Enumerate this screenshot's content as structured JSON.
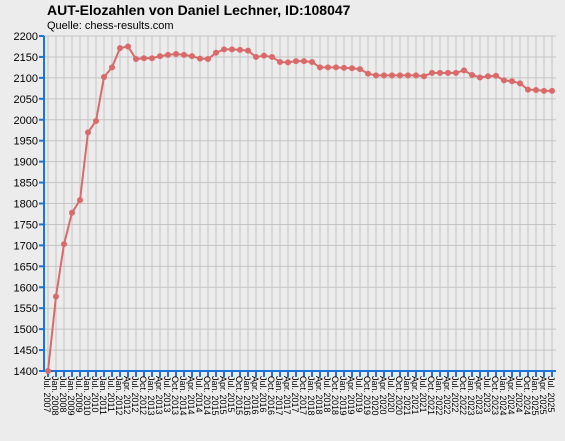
{
  "chart_data": {
    "type": "line",
    "title": "AUT-Elozahlen von Daniel Lechner, ID:108047",
    "subtitle": "Quelle: chess-results.com",
    "xlabel": "",
    "ylabel": "",
    "ylim": [
      1400,
      2200
    ],
    "yticks": [
      1400,
      1450,
      1500,
      1550,
      1600,
      1650,
      1700,
      1750,
      1800,
      1850,
      1900,
      1950,
      2000,
      2050,
      2100,
      2150,
      2200
    ],
    "grid": true,
    "legend": "none",
    "line_color": "#d96a6a",
    "x": [
      "Jul. 2007",
      "Jan. 2008",
      "Jul. 2008",
      "Jan. 2009",
      "Jul. 2009",
      "Jan. 2010",
      "Jul. 2010",
      "Jan. 2011",
      "Jul. 2011",
      "Jan. 2012",
      "Apr. 2012",
      "Jul. 2012",
      "Oct. 2012",
      "Jan. 2013",
      "Apr. 2013",
      "Jul. 2013",
      "Oct. 2013",
      "Jan. 2014",
      "Apr. 2014",
      "Jul. 2014",
      "Oct. 2014",
      "Jan. 2015",
      "Apr. 2015",
      "Jul. 2015",
      "Oct. 2015",
      "Jan. 2016",
      "Apr. 2016",
      "Jul. 2016",
      "Oct. 2016",
      "Jan. 2017",
      "Apr. 2017",
      "Jul. 2017",
      "Oct. 2017",
      "Jan. 2018",
      "Apr. 2018",
      "Jul. 2018",
      "Oct. 2018",
      "Jan. 2019",
      "Apr. 2019",
      "Jul. 2019",
      "Oct. 2019",
      "Jan. 2020",
      "Apr. 2020",
      "Jul. 2020",
      "Oct. 2020",
      "Jan. 2021",
      "Apr. 2021",
      "Jul. 2021",
      "Oct. 2021",
      "Jan. 2022",
      "Apr. 2022",
      "Jul. 2022",
      "Oct. 2022",
      "Jan. 2023",
      "Apr. 2023",
      "Jul. 2023",
      "Oct. 2023",
      "Jan. 2024",
      "Apr. 2024",
      "Jul. 2024",
      "Oct. 2024",
      "Jan. 2025",
      "Apr. 2025",
      "Jul. 2025"
    ],
    "y": [
      1400,
      1578,
      1703,
      1778,
      1808,
      1970,
      1997,
      2102,
      2125,
      2171,
      2175,
      2145,
      2147,
      2147,
      2152,
      2155,
      2157,
      2155,
      2152,
      2146,
      2145,
      2160,
      2168,
      2168,
      2167,
      2165,
      2150,
      2153,
      2150,
      2138,
      2137,
      2140,
      2140,
      2138,
      2125,
      2125,
      2125,
      2124,
      2123,
      2121,
      2110,
      2106,
      2106,
      2106,
      2106,
      2106,
      2106,
      2104,
      2112,
      2112,
      2112,
      2112,
      2118,
      2107,
      2101,
      2104,
      2105,
      2094,
      2092,
      2087,
      2072,
      2071,
      2069,
      2069
    ]
  }
}
